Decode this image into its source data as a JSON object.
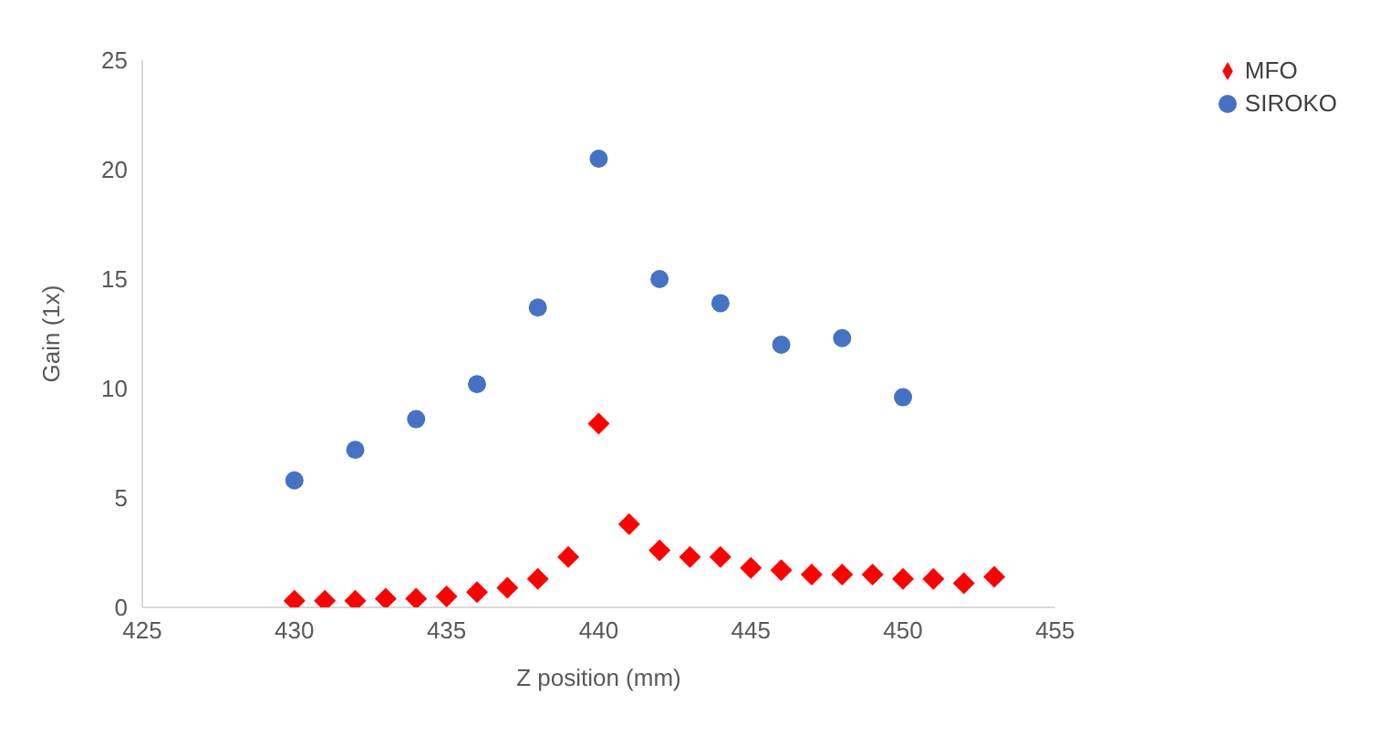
{
  "chart_data": {
    "type": "scatter",
    "xlabel": "Z position (mm)",
    "ylabel": "Gain (1x)",
    "xlim": [
      425,
      455
    ],
    "xticks": [
      425,
      430,
      435,
      440,
      445,
      450,
      455
    ],
    "ylim": [
      0,
      25
    ],
    "yticks": [
      0,
      5,
      10,
      15,
      20,
      25
    ],
    "grid": false,
    "legend": "top right",
    "series": [
      {
        "name": "MFO",
        "color": "#ff0000",
        "marker": "diamond",
        "x": [
          430,
          431,
          432,
          433,
          434,
          435,
          436,
          437,
          438,
          439,
          440,
          441,
          442,
          443,
          444,
          445,
          446,
          447,
          448,
          449,
          450,
          451,
          452,
          453
        ],
        "values": [
          0.3,
          0.3,
          0.3,
          0.4,
          0.4,
          0.5,
          0.7,
          0.9,
          1.3,
          2.3,
          8.4,
          3.8,
          2.6,
          2.3,
          2.3,
          1.8,
          1.7,
          1.5,
          1.5,
          1.5,
          1.3,
          1.3,
          1.1,
          1.4
        ]
      },
      {
        "name": "SIROKO",
        "color": "#4472c4",
        "marker": "circle",
        "x": [
          430,
          432,
          434,
          436,
          438,
          440,
          442,
          444,
          446,
          448,
          450
        ],
        "values": [
          5.8,
          7.2,
          8.6,
          10.2,
          13.7,
          20.5,
          15.0,
          13.9,
          12.0,
          12.3,
          9.6
        ]
      }
    ]
  }
}
